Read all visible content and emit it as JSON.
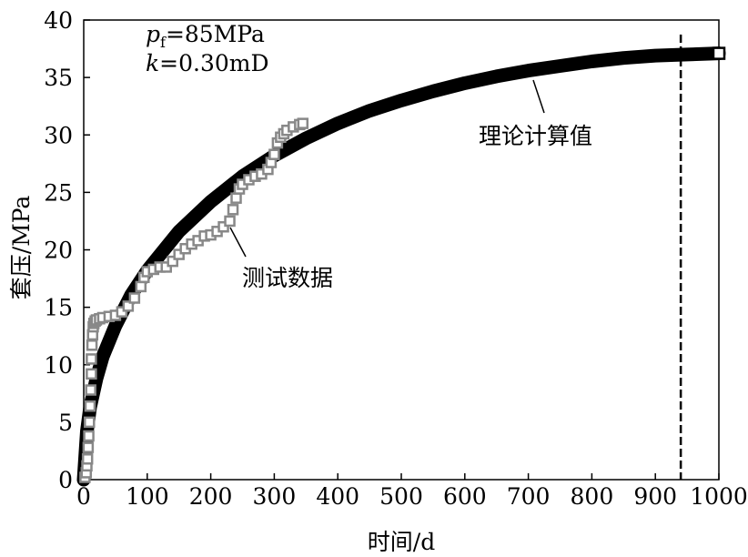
{
  "chart_data": {
    "type": "scatter",
    "xlabel": "时间/d",
    "ylabel": "套压/MPa",
    "xlim": [
      0,
      1000
    ],
    "ylim": [
      0,
      40
    ],
    "xticks": [
      0,
      100,
      200,
      300,
      400,
      500,
      600,
      700,
      800,
      900,
      1000
    ],
    "yticks": [
      0,
      5,
      10,
      15,
      20,
      25,
      30,
      35,
      40
    ],
    "grid": false,
    "parameters": {
      "pf_symbol": "p",
      "pf_subscript": "f",
      "pf_value": "=85MPa",
      "k_symbol": "k",
      "k_value": "=0.30mD"
    },
    "vertical_line": {
      "x": 940,
      "style": "dashed"
    },
    "series": [
      {
        "name": "理论计算值",
        "kind": "line",
        "color": "#000000",
        "x": [
          0,
          5,
          10,
          20,
          30,
          50,
          75,
          100,
          150,
          200,
          250,
          300,
          350,
          400,
          450,
          500,
          550,
          600,
          650,
          700,
          750,
          800,
          850,
          900,
          950,
          1000
        ],
        "y": [
          0,
          4.2,
          6.3,
          8.8,
          10.7,
          13.4,
          16.1,
          18.2,
          21.6,
          24.2,
          26.4,
          28.2,
          29.7,
          31.0,
          32.1,
          33.0,
          33.8,
          34.5,
          35.1,
          35.6,
          36.0,
          36.4,
          36.7,
          36.9,
          37.0,
          37.1
        ]
      },
      {
        "name": "测试数据",
        "kind": "scatter",
        "color": "#888888",
        "x": [
          2,
          4,
          5,
          6,
          7,
          8,
          9,
          10,
          11,
          12,
          12,
          13,
          14,
          15,
          16,
          18,
          20,
          25,
          30,
          40,
          50,
          60,
          70,
          80,
          90,
          95,
          100,
          110,
          120,
          130,
          140,
          150,
          160,
          170,
          180,
          190,
          200,
          210,
          220,
          230,
          235,
          240,
          245,
          250,
          260,
          270,
          280,
          290,
          295,
          300,
          305,
          310,
          315,
          320,
          330,
          340,
          345
        ],
        "y": [
          0.2,
          0.6,
          1.2,
          1.8,
          2.8,
          3.8,
          5.0,
          6.4,
          7.8,
          9.2,
          10.5,
          11.7,
          12.6,
          13.3,
          13.6,
          13.8,
          13.9,
          14.0,
          14.1,
          14.2,
          14.3,
          14.6,
          15.1,
          15.8,
          16.8,
          17.6,
          18.1,
          18.3,
          18.5,
          18.5,
          19.0,
          19.6,
          20.1,
          20.5,
          20.8,
          21.2,
          21.3,
          21.6,
          22.0,
          22.5,
          23.5,
          24.5,
          25.3,
          25.7,
          26.1,
          26.4,
          26.6,
          27.0,
          27.6,
          28.3,
          29.3,
          29.8,
          30.1,
          30.4,
          30.7,
          30.9,
          31.0
        ]
      }
    ],
    "annotations": [
      {
        "text": "理论计算值",
        "target_series": 0
      },
      {
        "text": "测试数据",
        "target_series": 1
      }
    ]
  }
}
